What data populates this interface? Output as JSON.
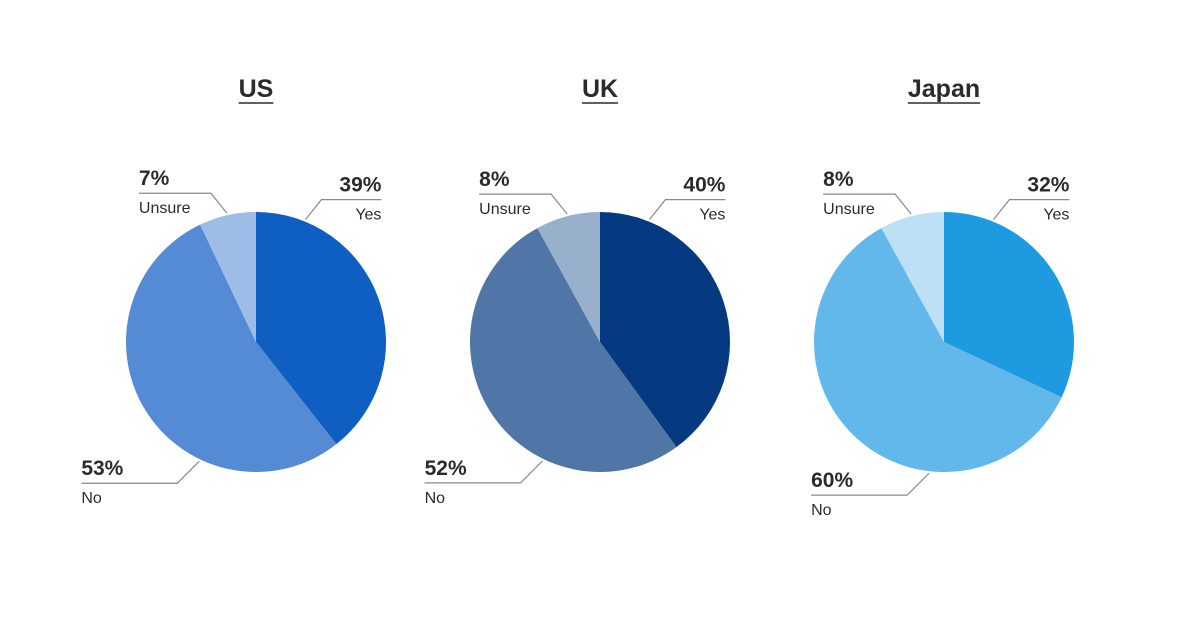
{
  "chart_data": [
    {
      "type": "pie",
      "title": "US",
      "slices": [
        {
          "label": "Yes",
          "value": 39,
          "value_label": "39%",
          "color": "#0f5ec2"
        },
        {
          "label": "No",
          "value": 53,
          "value_label": "53%",
          "color": "#558bd4"
        },
        {
          "label": "Unsure",
          "value": 7,
          "value_label": "7%",
          "color": "#9ebde6"
        }
      ]
    },
    {
      "type": "pie",
      "title": "UK",
      "slices": [
        {
          "label": "Yes",
          "value": 40,
          "value_label": "40%",
          "color": "#053a80"
        },
        {
          "label": "No",
          "value": 52,
          "value_label": "52%",
          "color": "#5076a7"
        },
        {
          "label": "Unsure",
          "value": 8,
          "value_label": "8%",
          "color": "#99b0cc"
        }
      ]
    },
    {
      "type": "pie",
      "title": "Japan",
      "slices": [
        {
          "label": "Yes",
          "value": 32,
          "value_label": "32%",
          "color": "#1e9be0"
        },
        {
          "label": "No",
          "value": 60,
          "value_label": "60%",
          "color": "#62b8ea"
        },
        {
          "label": "Unsure",
          "value": 8,
          "value_label": "8%",
          "color": "#bde0f6"
        }
      ]
    }
  ]
}
